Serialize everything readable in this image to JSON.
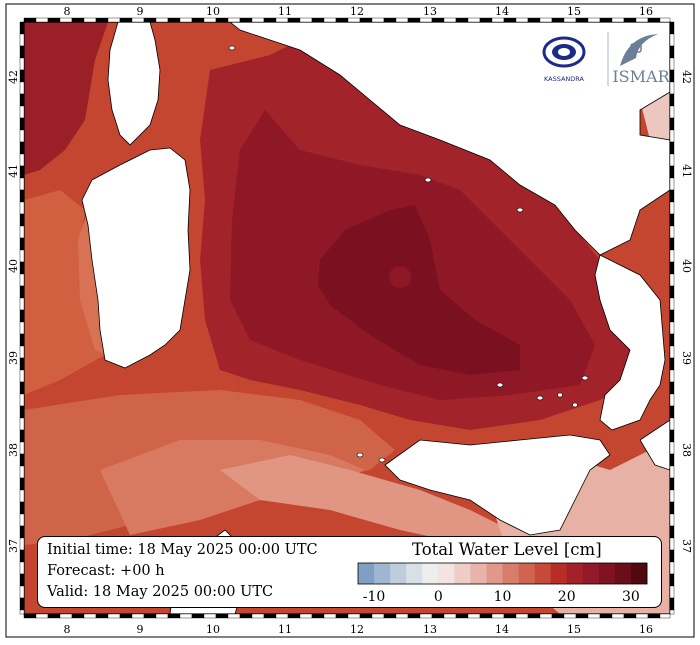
{
  "info": {
    "initial_time": "Initial time: 18 May 2025 00:00 UTC",
    "forecast": "Forecast: +00 h",
    "valid": "Valid: 18 May 2025 00:00 UTC"
  },
  "colorbar": {
    "title": "Total Water Level [cm]",
    "ticks": [
      "-10",
      "0",
      "10",
      "20",
      "30"
    ],
    "colors": [
      "#7f9fc4",
      "#9fb6d2",
      "#bfccdd",
      "#d9dfe7",
      "#eeeeef",
      "#f3e3e1",
      "#efcdc7",
      "#e8b3a8",
      "#e1988a",
      "#d87d6b",
      "#cf6551",
      "#c64a38",
      "#b82d28",
      "#a4212a",
      "#92192a",
      "#801322",
      "#6a0e1b",
      "#52080f"
    ]
  },
  "axes": {
    "lon_labels": [
      "8",
      "9",
      "10",
      "11",
      "12",
      "13",
      "14",
      "15",
      "16"
    ],
    "lat_labels": [
      "37",
      "38",
      "39",
      "40",
      "41",
      "42"
    ]
  },
  "logos": {
    "left_text": "KASSANDRA",
    "right_text": "ISMAR"
  },
  "colors": {
    "land": "#ffffff",
    "sea_outer": "#c5452f",
    "sea_mid": "#a8252a",
    "sea_inner": "#8e1726",
    "sea_core": "#7c1120",
    "south_light": "#d66a55",
    "south_pale": "#e5a497"
  }
}
